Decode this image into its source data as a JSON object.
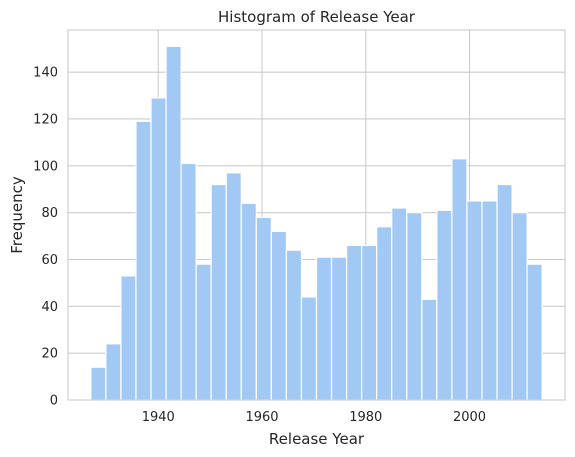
{
  "chart_data": {
    "type": "bar",
    "title": "Histogram of Release Year",
    "xlabel": "Release Year",
    "ylabel": "Frequency",
    "bar_color": "#a1c9f4",
    "bins": [
      {
        "x0": 1927.0,
        "x1": 1929.9,
        "value": 14
      },
      {
        "x0": 1929.9,
        "x1": 1932.8,
        "value": 24
      },
      {
        "x0": 1932.8,
        "x1": 1935.7,
        "value": 53
      },
      {
        "x0": 1935.7,
        "x1": 1938.6,
        "value": 119
      },
      {
        "x0": 1938.6,
        "x1": 1941.5,
        "value": 129
      },
      {
        "x0": 1941.5,
        "x1": 1944.4,
        "value": 151
      },
      {
        "x0": 1944.4,
        "x1": 1947.3,
        "value": 101
      },
      {
        "x0": 1947.3,
        "x1": 1950.2,
        "value": 58
      },
      {
        "x0": 1950.2,
        "x1": 1953.1,
        "value": 92
      },
      {
        "x0": 1953.1,
        "x1": 1956.0,
        "value": 97
      },
      {
        "x0": 1956.0,
        "x1": 1958.9,
        "value": 84
      },
      {
        "x0": 1958.9,
        "x1": 1961.8,
        "value": 78
      },
      {
        "x0": 1961.8,
        "x1": 1964.7,
        "value": 72
      },
      {
        "x0": 1964.7,
        "x1": 1967.6,
        "value": 64
      },
      {
        "x0": 1967.6,
        "x1": 1970.5,
        "value": 44
      },
      {
        "x0": 1970.5,
        "x1": 1973.4,
        "value": 61
      },
      {
        "x0": 1973.4,
        "x1": 1976.3,
        "value": 61
      },
      {
        "x0": 1976.3,
        "x1": 1979.2,
        "value": 66
      },
      {
        "x0": 1979.2,
        "x1": 1982.1,
        "value": 66
      },
      {
        "x0": 1982.1,
        "x1": 1985.0,
        "value": 74
      },
      {
        "x0": 1985.0,
        "x1": 1987.9,
        "value": 82
      },
      {
        "x0": 1987.9,
        "x1": 1990.8,
        "value": 80
      },
      {
        "x0": 1990.8,
        "x1": 1993.7,
        "value": 43
      },
      {
        "x0": 1993.7,
        "x1": 1996.6,
        "value": 81
      },
      {
        "x0": 1996.6,
        "x1": 1999.5,
        "value": 103
      },
      {
        "x0": 1999.5,
        "x1": 2002.4,
        "value": 85
      },
      {
        "x0": 2002.4,
        "x1": 2005.3,
        "value": 85
      },
      {
        "x0": 2005.3,
        "x1": 2008.2,
        "value": 92
      },
      {
        "x0": 2008.2,
        "x1": 2011.1,
        "value": 80
      },
      {
        "x0": 2011.1,
        "x1": 2014.0,
        "value": 58
      }
    ],
    "xlim": [
      1922.6,
      2018.4
    ],
    "ylim": [
      0,
      158
    ],
    "xticks": [
      1940,
      1960,
      1980,
      2000
    ],
    "xtick_labels": [
      "1940",
      "1960",
      "1980",
      "2000"
    ],
    "yticks": [
      0,
      20,
      40,
      60,
      80,
      100,
      120,
      140
    ],
    "ytick_labels": [
      "0",
      "20",
      "40",
      "60",
      "80",
      "100",
      "120",
      "140"
    ],
    "grid": true,
    "legend": false
  }
}
